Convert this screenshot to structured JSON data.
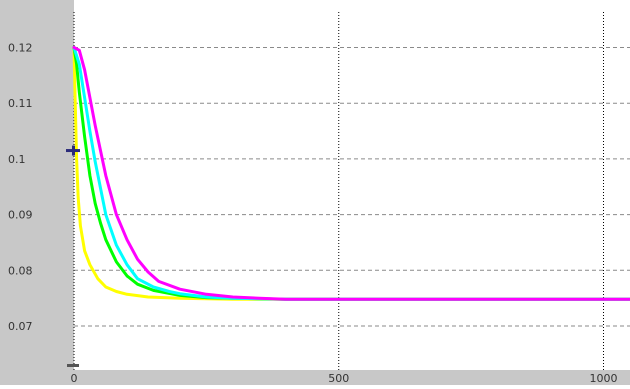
{
  "chart_data": {
    "type": "line",
    "title": "",
    "xlabel": "",
    "ylabel": "",
    "xlim": [
      0,
      1050
    ],
    "ylim": [
      0.065,
      0.125
    ],
    "x_ticks": [
      0,
      500,
      1000
    ],
    "x_tick_labels": [
      "0",
      "500",
      "1000"
    ],
    "y_ticks": [
      0.12,
      0.11,
      0.1,
      0.09,
      0.08,
      0.07
    ],
    "y_tick_labels": [
      "0.12",
      "0.11",
      "0.1",
      "0.09",
      "0.08",
      "0.07"
    ],
    "grid": {
      "horizontal": "dashed",
      "vertical": "dotted"
    },
    "legend": "none",
    "colors": {
      "panel": "#c8c8c8",
      "plot_bg": "#ffffff",
      "grid_h": "#8a8a8a",
      "grid_v": "#000000",
      "marker": "#2b2b7a"
    },
    "marker_y": 0.1015,
    "series": [
      {
        "color": "#ffff00",
        "x": [
          0,
          2,
          5,
          8,
          12,
          20,
          30,
          45,
          60,
          80,
          100,
          140,
          200,
          300,
          400,
          500,
          700,
          1050
        ],
        "y": [
          0.12,
          0.111,
          0.1,
          0.093,
          0.088,
          0.0835,
          0.081,
          0.0785,
          0.077,
          0.0762,
          0.0757,
          0.0752,
          0.075,
          0.0748,
          0.0748,
          0.0748,
          0.0748,
          0.0748
        ]
      },
      {
        "color": "#00ff00",
        "x": [
          0,
          5,
          10,
          20,
          30,
          40,
          50,
          60,
          80,
          100,
          120,
          150,
          200,
          250,
          300,
          400,
          500,
          700,
          1050
        ],
        "y": [
          0.12,
          0.117,
          0.112,
          0.104,
          0.097,
          0.092,
          0.0885,
          0.0855,
          0.0815,
          0.079,
          0.0775,
          0.0764,
          0.0755,
          0.0751,
          0.075,
          0.0748,
          0.0748,
          0.0748,
          0.0748
        ]
      },
      {
        "color": "#00ffff",
        "x": [
          0,
          10,
          20,
          30,
          40,
          60,
          80,
          100,
          120,
          150,
          180,
          200,
          250,
          300,
          400,
          500,
          700,
          1050
        ],
        "y": [
          0.12,
          0.117,
          0.111,
          0.105,
          0.0995,
          0.09,
          0.0845,
          0.081,
          0.0785,
          0.077,
          0.0762,
          0.0758,
          0.0752,
          0.075,
          0.0748,
          0.0748,
          0.0748,
          0.0748
        ]
      },
      {
        "color": "#ff00ff",
        "x": [
          0,
          10,
          20,
          30,
          40,
          60,
          80,
          100,
          120,
          140,
          160,
          200,
          250,
          300,
          350,
          400,
          500,
          700,
          1050
        ],
        "y": [
          0.12,
          0.1195,
          0.116,
          0.111,
          0.106,
          0.097,
          0.09,
          0.0855,
          0.082,
          0.0797,
          0.078,
          0.0766,
          0.0757,
          0.0752,
          0.075,
          0.0748,
          0.0748,
          0.0748,
          0.0748
        ]
      }
    ]
  }
}
